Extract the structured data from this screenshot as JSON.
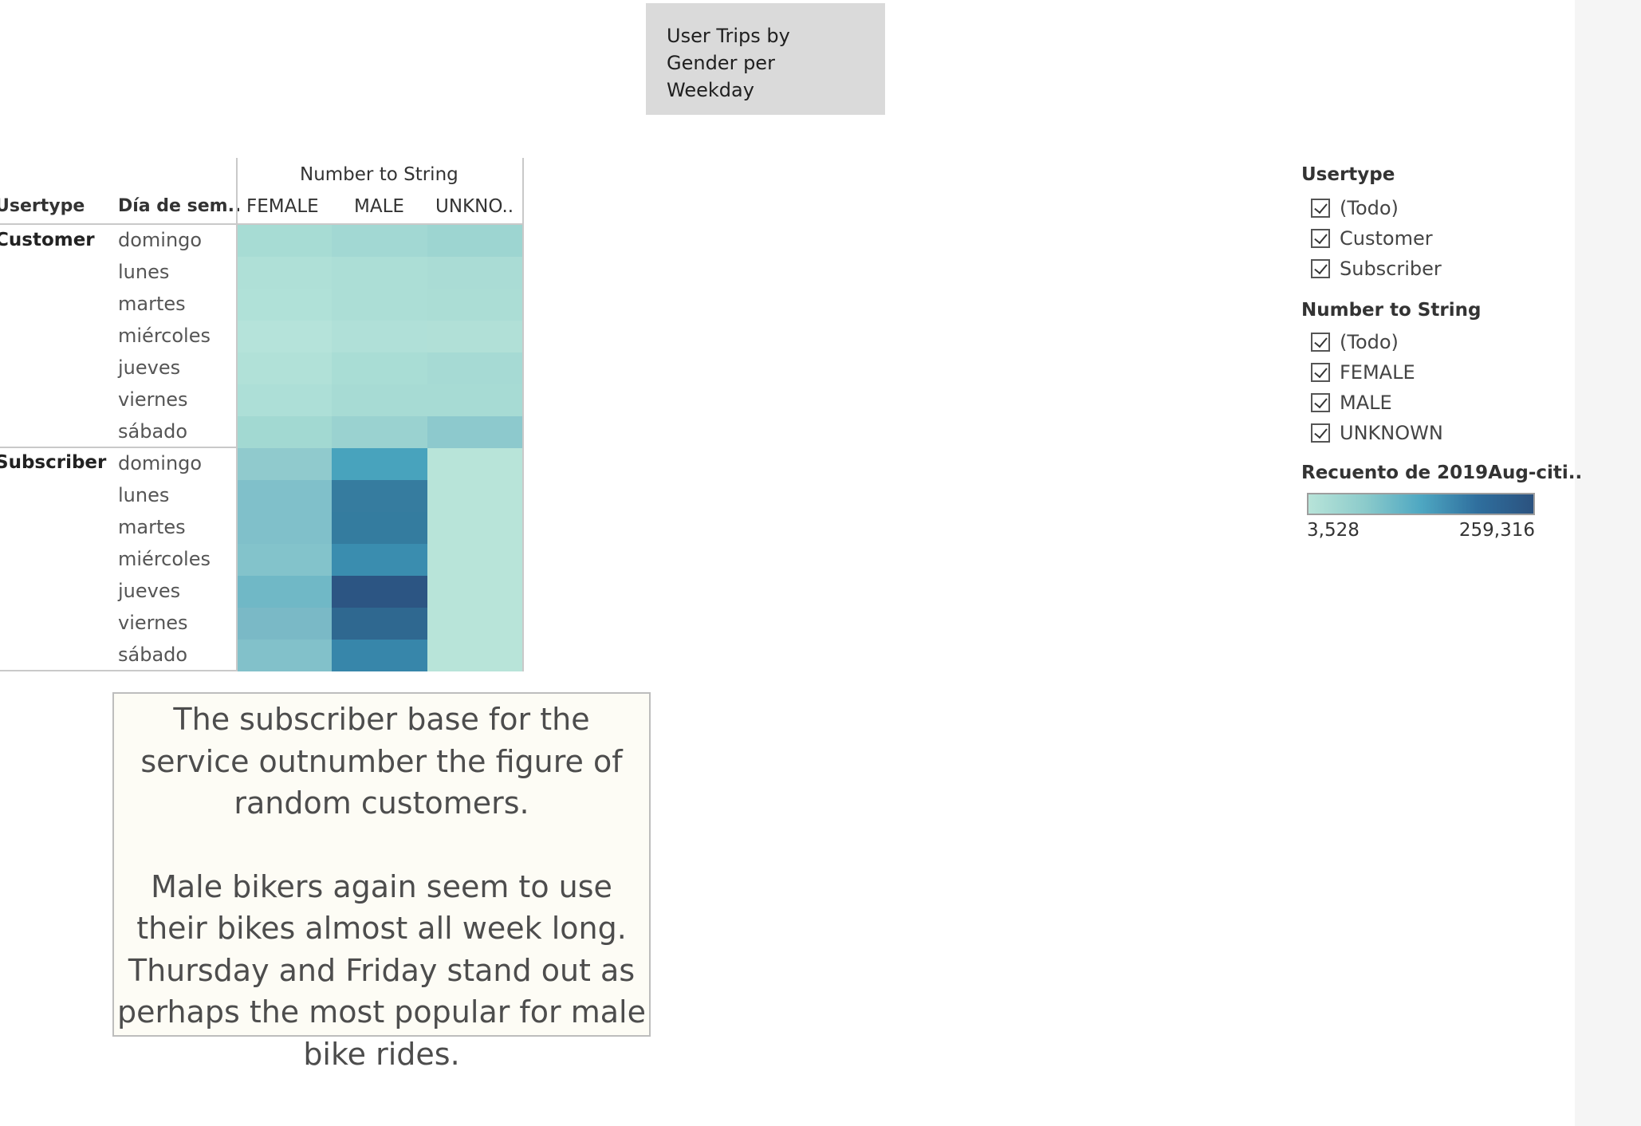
{
  "title": "User  Trips by Gender per Weekday",
  "crosstab": {
    "column_group_header": "Number  to String",
    "row_headers": [
      "Usertype",
      "Día de sem.."
    ],
    "columns": [
      "FEMALE",
      "MALE",
      "UNKNO.."
    ],
    "groups": [
      {
        "label": "Customer",
        "rows": [
          {
            "day": "domingo",
            "colors": [
              "#a7dcd4",
              "#a2d8d3",
              "#9dd5d1"
            ]
          },
          {
            "day": "lunes",
            "colors": [
              "#afe0d7",
              "#acded6",
              "#aadcd5"
            ]
          },
          {
            "day": "martes",
            "colors": [
              "#b0e1d8",
              "#acded6",
              "#abddd5"
            ]
          },
          {
            "day": "miércoles",
            "colors": [
              "#b5e3da",
              "#b0e0d8",
              "#b1e0d7"
            ]
          },
          {
            "day": "jueves",
            "colors": [
              "#b1e1d8",
              "#a9ddd5",
              "#a6dad4"
            ]
          },
          {
            "day": "viernes",
            "colors": [
              "#addfd7",
              "#a7dbd4",
              "#a7dbd4"
            ]
          },
          {
            "day": "sábado",
            "colors": [
              "#a2d9d2",
              "#9ad2d0",
              "#8dc9cd"
            ]
          }
        ]
      },
      {
        "label": "Subscriber",
        "rows": [
          {
            "day": "domingo",
            "colors": [
              "#90cacd",
              "#48a3bd",
              "#b8e4d9"
            ]
          },
          {
            "day": "lunes",
            "colors": [
              "#80c0ca",
              "#367c9f",
              "#b8e4d9"
            ]
          },
          {
            "day": "martes",
            "colors": [
              "#80c0ca",
              "#347c9f",
              "#b8e4d9"
            ]
          },
          {
            "day": "miércoles",
            "colors": [
              "#83c3cb",
              "#3a8daf",
              "#b8e4d9"
            ]
          },
          {
            "day": "jueves",
            "colors": [
              "#70b8c6",
              "#2c5583",
              "#b8e4d9"
            ]
          },
          {
            "day": "viernes",
            "colors": [
              "#7ab9c6",
              "#2f6890",
              "#b8e4d9"
            ]
          },
          {
            "day": "sábado",
            "colors": [
              "#82c1ca",
              "#3786aa",
              "#b8e4d9"
            ]
          }
        ]
      }
    ]
  },
  "caption": {
    "paragraph1": "The subscriber base for the service outnumber the figure of random customers.",
    "paragraph2": "Male bikers again seem to use their bikes almost all week long. Thursday and Friday stand out as perhaps the most popular for male bike rides."
  },
  "filters": {
    "usertype": {
      "title": "Usertype",
      "options": [
        "(Todo)",
        "Customer",
        "Subscriber"
      ]
    },
    "number_to_string": {
      "title": "Number  to String",
      "options": [
        "(Todo)",
        "FEMALE",
        "MALE",
        "UNKNOWN"
      ]
    }
  },
  "color_legend": {
    "title": "Recuento de 2019Aug-citi..",
    "min_label": "3,528",
    "max_label": "259,316",
    "colors": [
      "#b8e4d9",
      "#2b527f"
    ]
  }
}
